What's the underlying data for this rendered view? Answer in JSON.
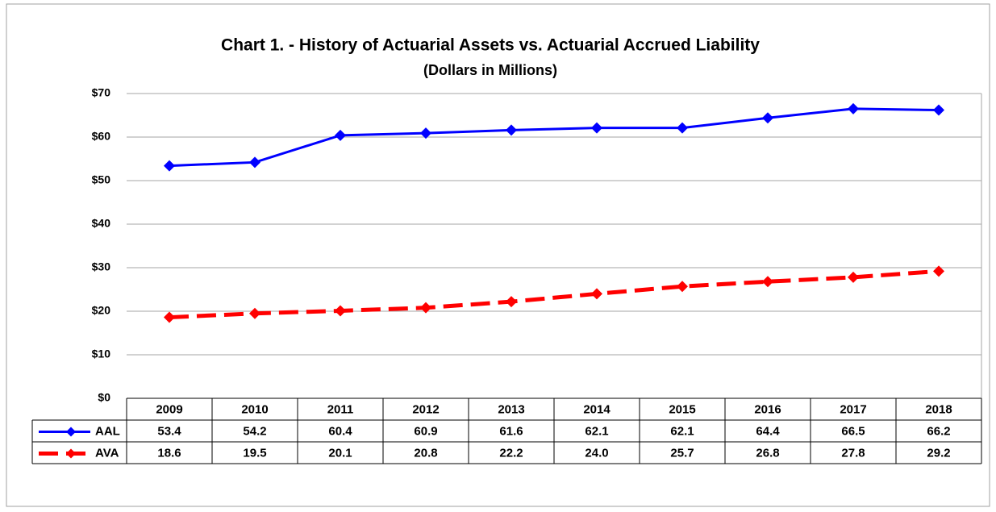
{
  "chart_data": {
    "type": "line",
    "title": "Chart 1. - History of Actuarial Assets vs. Actuarial Accrued Liability",
    "subtitle": "(Dollars in Millions)",
    "categories": [
      "2009",
      "2010",
      "2011",
      "2012",
      "2013",
      "2014",
      "2015",
      "2016",
      "2017",
      "2018"
    ],
    "series": [
      {
        "name": "AAL",
        "color": "#0000ff",
        "dashed": false,
        "values": [
          53.4,
          54.2,
          60.4,
          60.9,
          61.6,
          62.1,
          62.1,
          64.4,
          66.5,
          66.2
        ],
        "value_labels": [
          "53.4",
          "54.2",
          "60.4",
          "60.9",
          "61.6",
          "62.1",
          "62.1",
          "64.4",
          "66.5",
          "66.2"
        ]
      },
      {
        "name": "AVA",
        "color": "#ff0000",
        "dashed": true,
        "values": [
          18.6,
          19.5,
          20.1,
          20.8,
          22.2,
          24.0,
          25.7,
          26.8,
          27.8,
          29.2
        ],
        "value_labels": [
          "18.6",
          "19.5",
          "20.1",
          "20.8",
          "22.2",
          "24.0",
          "25.7",
          "26.8",
          "27.8",
          "29.2"
        ]
      }
    ],
    "ylim": [
      0,
      70
    ],
    "yticks": [
      {
        "value": 0,
        "label": "$0"
      },
      {
        "value": 10,
        "label": "$10"
      },
      {
        "value": 20,
        "label": "$20"
      },
      {
        "value": 30,
        "label": "$30"
      },
      {
        "value": 40,
        "label": "$40"
      },
      {
        "value": 50,
        "label": "$50"
      },
      {
        "value": 60,
        "label": "$60"
      },
      {
        "value": 70,
        "label": "$70"
      }
    ],
    "grid": true
  }
}
